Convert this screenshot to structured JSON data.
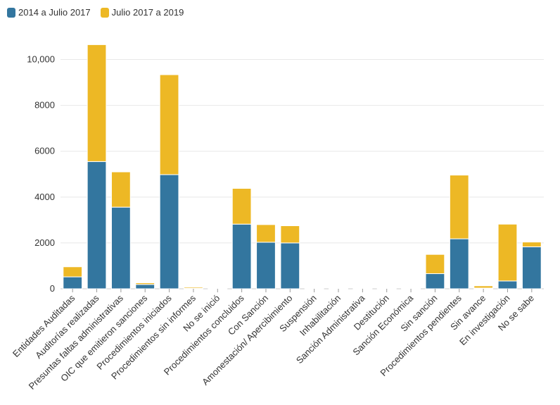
{
  "chart_data": {
    "type": "bar",
    "stacked": true,
    "categories": [
      "Entidades Auditadas",
      "Auditorías realizadas",
      "Presuntas faltas administrativas",
      "OIC que emitieron sanciones",
      "Procedimientos iniciados",
      "Procedimientos sin informes",
      "No se inició",
      "Procedimientos concluidos",
      "Con Sanción",
      "Amonestación/ Apercibimiento",
      "Suspensión",
      "Inhabilitación",
      "Sanción Administrativa",
      "Destitución",
      "Sanción Económica",
      "Sin sanción",
      "Procedimientos pendientes",
      "Sin avance",
      "En investigación",
      "No se sabe"
    ],
    "series": [
      {
        "name": "2014 a Julio 2017",
        "color": "#33769f",
        "values": [
          520,
          5550,
          3560,
          190,
          4980,
          20,
          5,
          2820,
          2030,
          2000,
          10,
          15,
          10,
          5,
          5,
          660,
          2180,
          30,
          340,
          1830
        ]
      },
      {
        "name": "Julio 2017 a 2019",
        "color": "#edb825",
        "values": [
          440,
          5100,
          1540,
          70,
          4360,
          50,
          5,
          1560,
          770,
          750,
          5,
          20,
          20,
          5,
          5,
          840,
          2780,
          100,
          2480,
          210
        ]
      }
    ],
    "ylim": [
      0,
      11000
    ],
    "yticks": [
      0,
      2000,
      4000,
      6000,
      8000,
      10000
    ],
    "ytick_labels": [
      "0",
      "2000",
      "4000",
      "6000",
      "8000",
      "10,000"
    ],
    "grid": true,
    "legend": "top-left"
  }
}
